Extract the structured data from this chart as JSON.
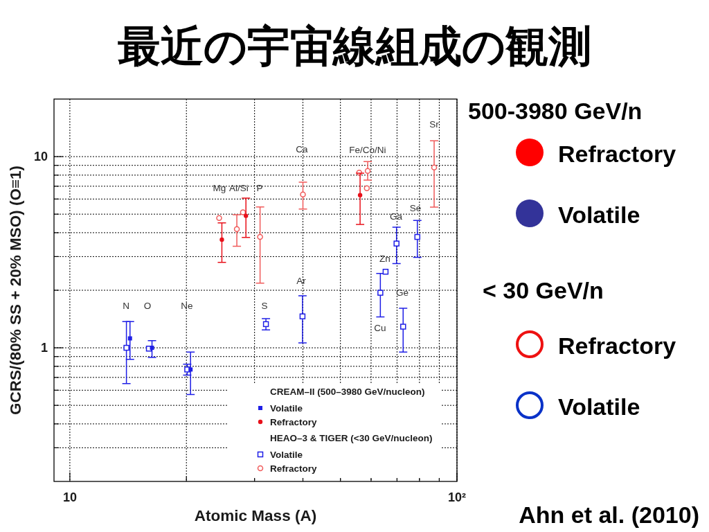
{
  "chart_data": {
    "type": "scatter",
    "title": "最近の宇宙線組成の観測",
    "xlabel": "Atomic Mass (A)",
    "ylabel": "GCRS/(80% SS + 20% MSO) (O≡1)",
    "log": "xy",
    "xlim": [
      9.1,
      100
    ],
    "ylim": [
      0.2,
      20
    ],
    "xticks": [
      10,
      {
        "value": 20,
        "label": null
      },
      {
        "value": 30,
        "label": null
      },
      {
        "value": 40,
        "label": null
      },
      {
        "value": 50,
        "label": null
      },
      {
        "value": 60,
        "label": null
      },
      {
        "value": 70,
        "label": null
      },
      {
        "value": 80,
        "label": null
      },
      {
        "value": 90,
        "label": null
      },
      {
        "value": 100,
        "label": "10²"
      }
    ],
    "yticks": [
      {
        "value": 0.3,
        "label": null
      },
      {
        "value": 0.4,
        "label": null
      },
      {
        "value": 0.5,
        "label": null
      },
      {
        "value": 0.6,
        "label": null
      },
      {
        "value": 0.7,
        "label": null
      },
      {
        "value": 0.8,
        "label": null
      },
      {
        "value": 0.9,
        "label": null
      },
      1,
      {
        "value": 2,
        "label": null
      },
      {
        "value": 3,
        "label": null
      },
      {
        "value": 4,
        "label": null
      },
      {
        "value": 5,
        "label": null
      },
      {
        "value": 6,
        "label": null
      },
      {
        "value": 7,
        "label": null
      },
      {
        "value": 8,
        "label": null
      },
      {
        "value": 9,
        "label": null
      },
      10
    ],
    "grid": true,
    "legend": "bottom right",
    "series": [
      {
        "name": "Volatile",
        "color": "#1f1fe6",
        "marker": "square",
        "x": [
          14.3,
          16.3,
          20.5
        ],
        "values": [
          1.12,
          1.0,
          0.77
        ],
        "errors": [
          [
            0.87,
            1.37
          ],
          [
            0.89,
            1.09
          ],
          [
            0.57,
            0.95
          ]
        ]
      },
      {
        "name": "Refractory",
        "color": "#e8101a",
        "marker": "circle",
        "x": [
          24.7,
          28.5,
          56.2
        ],
        "values": [
          3.68,
          4.9,
          6.29
        ],
        "errors": [
          [
            2.8,
            4.5
          ],
          [
            3.78,
            6.07
          ],
          [
            4.42,
            8.19
          ]
        ]
      },
      {
        "name": "Volatile",
        "color": "#1f1fe6",
        "marker": "square",
        "x": [
          14.0,
          16.0,
          20.1,
          32.1,
          39.9,
          63.4,
          65.4,
          69.8,
          72.6,
          79.0
        ],
        "values": [
          1.0,
          0.99,
          0.77,
          1.33,
          1.46,
          1.94,
          2.5,
          3.51,
          1.29,
          3.8
        ],
        "errors": [
          [
            0.65,
            1.37
          ],
          null,
          [
            0.72,
            0.82
          ],
          [
            1.24,
            1.42
          ],
          [
            1.06,
            1.87
          ],
          [
            1.45,
            2.45
          ],
          null,
          [
            2.76,
            4.27
          ],
          [
            0.95,
            1.61
          ],
          [
            2.97,
            4.64
          ]
        ]
      },
      {
        "name": "Refractory",
        "color": "#f05a5a",
        "marker": "circle",
        "x": [
          24.3,
          27.0,
          28.0,
          31.0,
          40.0,
          55.9,
          58.8,
          58.5,
          87.3
        ],
        "values": [
          4.77,
          4.18,
          5.11,
          3.8,
          6.34,
          8.24,
          8.41,
          6.83,
          8.78
        ],
        "errors": [
          null,
          [
            3.4,
            4.97
          ],
          null,
          [
            2.18,
            5.45
          ],
          [
            5.32,
            7.35
          ],
          null,
          [
            7.53,
            9.41
          ],
          null,
          [
            5.44,
            12.1
          ]
        ]
      }
    ],
    "annotations": [
      "CREAM–II (500–3980 GeV/nucleon)",
      "HEAO–3 & TIGER (<30 GeV/nucleon)",
      "500-3980 GeV/n",
      "Refractory",
      "Volatile",
      "< 30 GeV/n",
      "Refractory",
      "Volatile",
      "Ahn et al. (2010)",
      "N",
      "O",
      "Ne",
      "Mg",
      "Al/Si",
      "P",
      "Ca",
      "S",
      "Ar",
      "Fe/Co/Ni",
      "Sr",
      "Se",
      "Ga",
      "Zn",
      "Ge",
      "Cu"
    ]
  }
}
